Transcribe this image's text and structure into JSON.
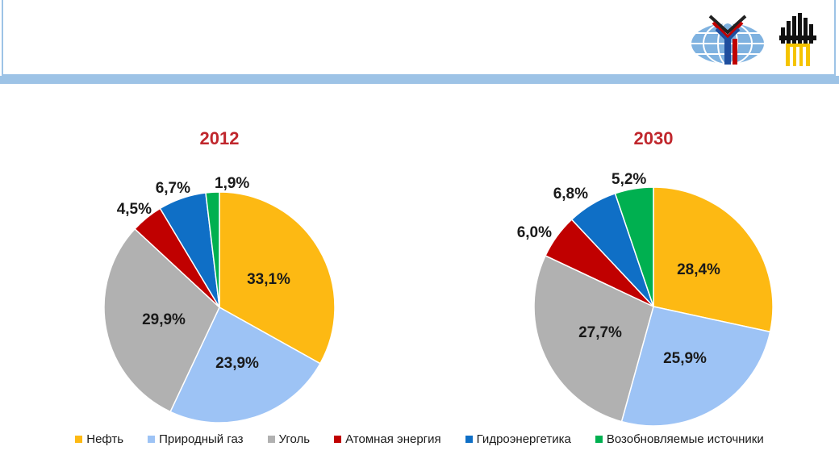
{
  "colors": {
    "neft": "#fdb913",
    "gas": "#9dc3f5",
    "coal": "#b1b1b1",
    "nuclear": "#c00000",
    "hydro": "#0f6fc6",
    "renew": "#00b050",
    "accent": "#9dc3e6"
  },
  "chart_data": [
    {
      "type": "pie",
      "title": "2012",
      "slices": [
        {
          "label": "Нефть",
          "value": 33.1,
          "text": "33,1%",
          "color_key": "neft"
        },
        {
          "label": "Природный газ",
          "value": 23.9,
          "text": "23,9%",
          "color_key": "gas"
        },
        {
          "label": "Уголь",
          "value": 29.9,
          "text": "29,9%",
          "color_key": "coal"
        },
        {
          "label": "Атомная энергия",
          "value": 4.5,
          "text": "4,5%",
          "color_key": "nuclear"
        },
        {
          "label": "Гидроэнергетика",
          "value": 6.7,
          "text": "6,7%",
          "color_key": "hydro"
        },
        {
          "label": "Возобновляемые источники",
          "value": 1.9,
          "text": "1,9%",
          "color_key": "renew"
        }
      ]
    },
    {
      "type": "pie",
      "title": "2030",
      "slices": [
        {
          "label": "Нефть",
          "value": 28.4,
          "text": "28,4%",
          "color_key": "neft"
        },
        {
          "label": "Природный газ",
          "value": 25.9,
          "text": "25,9%",
          "color_key": "gas"
        },
        {
          "label": "Уголь",
          "value": 27.7,
          "text": "27,7%",
          "color_key": "coal"
        },
        {
          "label": "Атомная энергия",
          "value": 6.0,
          "text": "6,0%",
          "color_key": "nuclear"
        },
        {
          "label": "Гидроэнергетика",
          "value": 6.8,
          "text": "6,8%",
          "color_key": "hydro"
        },
        {
          "label": "Возобновляемые источники",
          "value": 5.2,
          "text": "5,2%",
          "color_key": "renew"
        }
      ]
    }
  ],
  "legend": [
    {
      "label": "Нефть",
      "color_key": "neft"
    },
    {
      "label": "Природный газ",
      "color_key": "gas"
    },
    {
      "label": "Уголь",
      "color_key": "coal"
    },
    {
      "label": "Атомная энергия",
      "color_key": "nuclear"
    },
    {
      "label": "Гидроэнергетика",
      "color_key": "hydro"
    },
    {
      "label": "Возобновляемые источники",
      "color_key": "renew"
    }
  ]
}
